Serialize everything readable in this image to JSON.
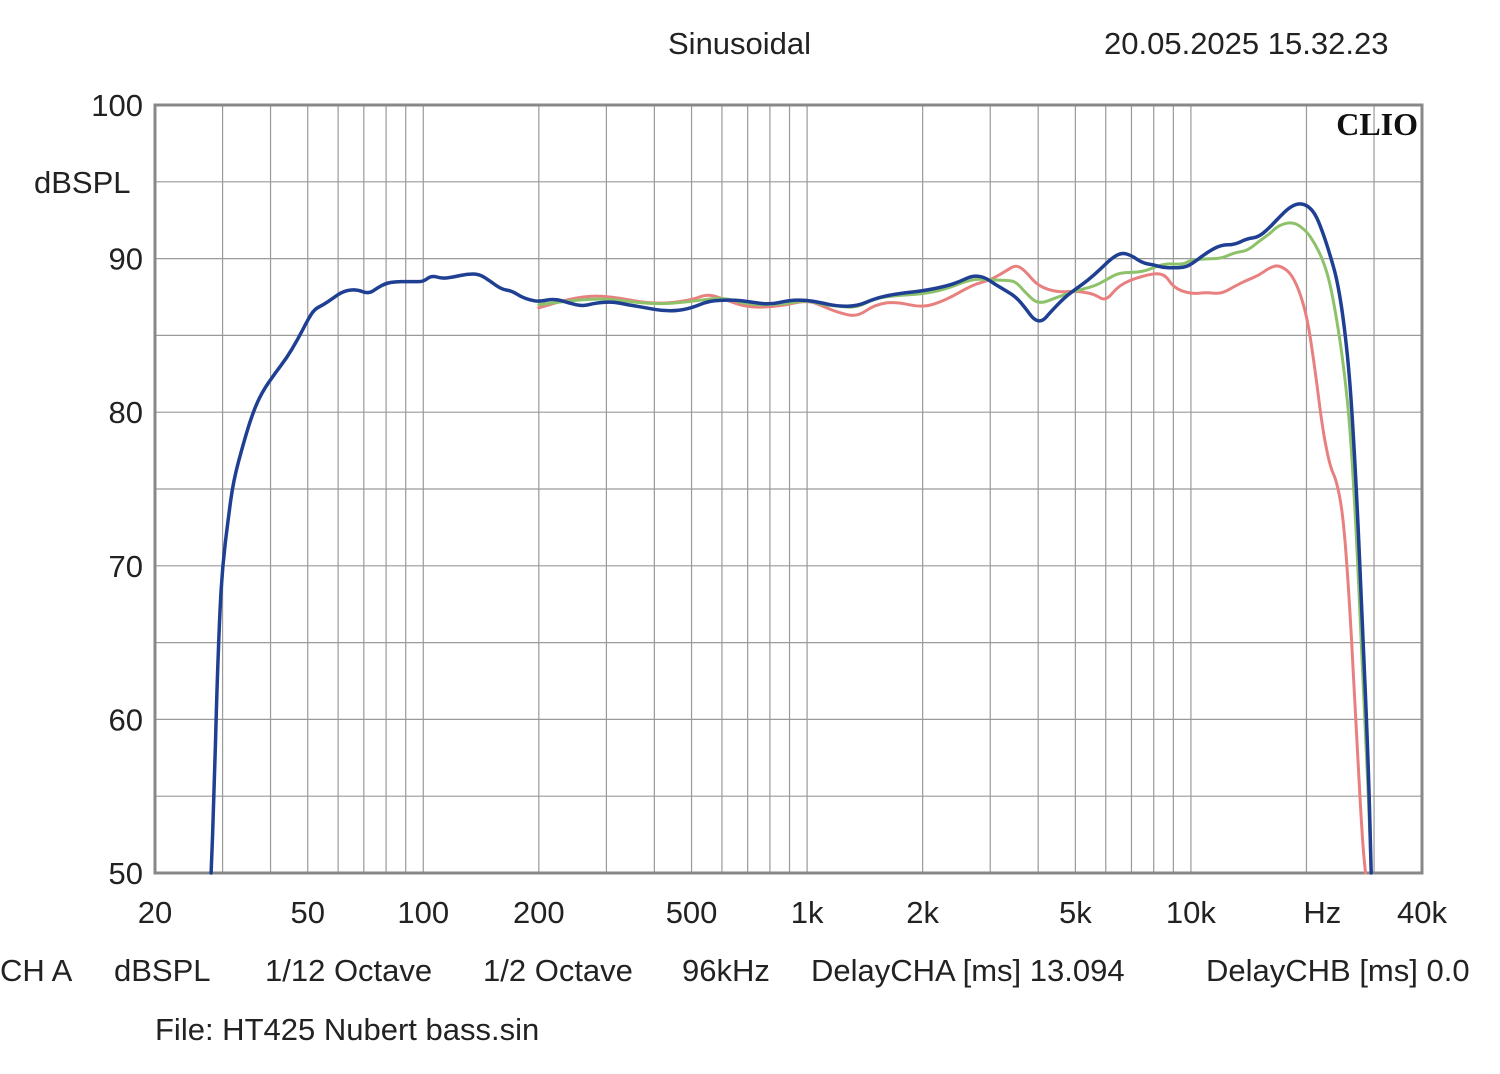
{
  "header": {
    "title": "Sinusoidal",
    "timestamp": "20.05.2025 15.32.23",
    "brand": "CLIO"
  },
  "footer": {
    "channel": "CH A",
    "unit": "dBSPL",
    "smoothing": "1/12 Octave",
    "octave": "1/2 Octave",
    "sample_rate": "96kHz",
    "delay_cha": "DelayCHA [ms] 13.094",
    "delay_chb": "DelayCHB [ms] 0.0",
    "file": "File: HT425 Nubert bass.sin"
  },
  "colors": {
    "grid": "#9a9a9a",
    "frame": "#888888",
    "blue": "#1f3f93",
    "green": "#8ec26a",
    "red": "#e88080"
  },
  "chart_data": {
    "type": "line",
    "title": "Sinusoidal",
    "xlabel": "Hz",
    "ylabel": "dBSPL",
    "xscale": "log",
    "xlim": [
      20,
      40000
    ],
    "ylim": [
      50,
      100
    ],
    "grid": true,
    "x_tick_labels": [
      {
        "value": 20,
        "label": "20"
      },
      {
        "value": 50,
        "label": "50"
      },
      {
        "value": 100,
        "label": "100"
      },
      {
        "value": 200,
        "label": "200"
      },
      {
        "value": 500,
        "label": "500"
      },
      {
        "value": 1000,
        "label": "1k"
      },
      {
        "value": 2000,
        "label": "2k"
      },
      {
        "value": 5000,
        "label": "5k"
      },
      {
        "value": 10000,
        "label": "10k"
      },
      {
        "value": 22000,
        "label": "Hz"
      },
      {
        "value": 40000,
        "label": "40k"
      }
    ],
    "y_tick_labels": [
      {
        "value": 100,
        "label": "100"
      },
      {
        "value": 90,
        "label": "90"
      },
      {
        "value": 80,
        "label": "80"
      },
      {
        "value": 70,
        "label": "70"
      },
      {
        "value": 60,
        "label": "60"
      },
      {
        "value": 50,
        "label": "50"
      }
    ],
    "series": [
      {
        "name": "red",
        "color": "#e88080",
        "points": [
          [
            200,
            86.8
          ],
          [
            250,
            87.5
          ],
          [
            300,
            87.6
          ],
          [
            400,
            87.0
          ],
          [
            500,
            87.3
          ],
          [
            550,
            87.7
          ],
          [
            600,
            87.4
          ],
          [
            700,
            86.8
          ],
          [
            850,
            86.9
          ],
          [
            1000,
            87.3
          ],
          [
            1100,
            86.9
          ],
          [
            1200,
            86.5
          ],
          [
            1350,
            86.2
          ],
          [
            1500,
            87.0
          ],
          [
            1700,
            87.2
          ],
          [
            2000,
            86.8
          ],
          [
            2300,
            87.3
          ],
          [
            2700,
            88.3
          ],
          [
            3000,
            88.6
          ],
          [
            3300,
            89.2
          ],
          [
            3500,
            89.6
          ],
          [
            3700,
            89.2
          ],
          [
            4000,
            88.2
          ],
          [
            4500,
            87.8
          ],
          [
            5000,
            87.9
          ],
          [
            5600,
            87.7
          ],
          [
            6000,
            87.2
          ],
          [
            6500,
            88.3
          ],
          [
            7500,
            88.9
          ],
          [
            8500,
            89.1
          ],
          [
            9000,
            88.1
          ],
          [
            10000,
            87.7
          ],
          [
            11000,
            87.8
          ],
          [
            12000,
            87.7
          ],
          [
            13000,
            88.2
          ],
          [
            14000,
            88.6
          ],
          [
            15000,
            88.9
          ],
          [
            16000,
            89.4
          ],
          [
            17000,
            89.6
          ],
          [
            18500,
            88.9
          ],
          [
            20000,
            86.5
          ],
          [
            21000,
            83
          ],
          [
            22000,
            79
          ],
          [
            23000,
            76.5
          ],
          [
            24000,
            75.5
          ],
          [
            25000,
            73
          ],
          [
            26000,
            67
          ],
          [
            27000,
            59
          ],
          [
            28000,
            52
          ],
          [
            28500,
            50
          ]
        ]
      },
      {
        "name": "green",
        "color": "#8ec26a",
        "points": [
          [
            200,
            87.0
          ],
          [
            250,
            87.3
          ],
          [
            300,
            87.4
          ],
          [
            400,
            87.0
          ],
          [
            500,
            87.2
          ],
          [
            600,
            87.5
          ],
          [
            700,
            87.0
          ],
          [
            850,
            87.0
          ],
          [
            1000,
            87.3
          ],
          [
            1100,
            87.0
          ],
          [
            1200,
            86.9
          ],
          [
            1350,
            86.8
          ],
          [
            1500,
            87.4
          ],
          [
            1700,
            87.6
          ],
          [
            2000,
            87.7
          ],
          [
            2300,
            88.0
          ],
          [
            2700,
            88.7
          ],
          [
            3000,
            88.6
          ],
          [
            3300,
            88.6
          ],
          [
            3500,
            88.5
          ],
          [
            3700,
            87.8
          ],
          [
            4000,
            87.0
          ],
          [
            4500,
            87.5
          ],
          [
            5000,
            87.9
          ],
          [
            5600,
            88.2
          ],
          [
            6000,
            88.6
          ],
          [
            6500,
            89.1
          ],
          [
            7500,
            89.1
          ],
          [
            8500,
            89.7
          ],
          [
            9500,
            89.6
          ],
          [
            10000,
            89.9
          ],
          [
            11000,
            90.0
          ],
          [
            12000,
            90.0
          ],
          [
            13000,
            90.4
          ],
          [
            14000,
            90.5
          ],
          [
            15000,
            91.1
          ],
          [
            16000,
            91.6
          ],
          [
            17000,
            92.2
          ],
          [
            18500,
            92.4
          ],
          [
            20000,
            91.8
          ],
          [
            21000,
            91.0
          ],
          [
            22000,
            90.0
          ],
          [
            23000,
            88.5
          ],
          [
            24000,
            86
          ],
          [
            25000,
            83
          ],
          [
            26000,
            79
          ],
          [
            27000,
            72
          ],
          [
            28000,
            63
          ],
          [
            29000,
            55
          ],
          [
            29500,
            50
          ]
        ]
      },
      {
        "name": "blue",
        "color": "#1f3f93",
        "points": [
          [
            28,
            50
          ],
          [
            28.5,
            55
          ],
          [
            29,
            62
          ],
          [
            29.5,
            67
          ],
          [
            30,
            70
          ],
          [
            31,
            73
          ],
          [
            32,
            75.5
          ],
          [
            34,
            78
          ],
          [
            36,
            80
          ],
          [
            38,
            81.3
          ],
          [
            41,
            82.5
          ],
          [
            44,
            83.5
          ],
          [
            47,
            84.7
          ],
          [
            50,
            86
          ],
          [
            52,
            86.7
          ],
          [
            55,
            87
          ],
          [
            58,
            87.4
          ],
          [
            62,
            87.9
          ],
          [
            67,
            88
          ],
          [
            72,
            87.7
          ],
          [
            76,
            88.1
          ],
          [
            80,
            88.4
          ],
          [
            85,
            88.5
          ],
          [
            90,
            88.5
          ],
          [
            95,
            88.5
          ],
          [
            100,
            88.5
          ],
          [
            105,
            88.9
          ],
          [
            112,
            88.7
          ],
          [
            120,
            88.8
          ],
          [
            130,
            89.0
          ],
          [
            140,
            89.0
          ],
          [
            150,
            88.5
          ],
          [
            160,
            88.0
          ],
          [
            170,
            87.9
          ],
          [
            180,
            87.5
          ],
          [
            190,
            87.3
          ],
          [
            200,
            87.2
          ],
          [
            220,
            87.4
          ],
          [
            240,
            87.1
          ],
          [
            260,
            86.9
          ],
          [
            280,
            87.1
          ],
          [
            310,
            87.2
          ],
          [
            340,
            87.0
          ],
          [
            380,
            86.8
          ],
          [
            420,
            86.6
          ],
          [
            460,
            86.6
          ],
          [
            500,
            86.8
          ],
          [
            550,
            87.2
          ],
          [
            600,
            87.3
          ],
          [
            650,
            87.3
          ],
          [
            700,
            87.2
          ],
          [
            800,
            87.0
          ],
          [
            900,
            87.3
          ],
          [
            1000,
            87.3
          ],
          [
            1100,
            87.1
          ],
          [
            1200,
            86.9
          ],
          [
            1350,
            86.9
          ],
          [
            1500,
            87.4
          ],
          [
            1700,
            87.7
          ],
          [
            2000,
            87.9
          ],
          [
            2300,
            88.2
          ],
          [
            2500,
            88.5
          ],
          [
            2700,
            88.9
          ],
          [
            2900,
            88.8
          ],
          [
            3100,
            88.3
          ],
          [
            3300,
            87.9
          ],
          [
            3500,
            87.5
          ],
          [
            3700,
            86.8
          ],
          [
            3900,
            86.0
          ],
          [
            4100,
            85.9
          ],
          [
            4300,
            86.5
          ],
          [
            4700,
            87.5
          ],
          [
            5000,
            88.0
          ],
          [
            5400,
            88.6
          ],
          [
            5800,
            89.3
          ],
          [
            6200,
            90.0
          ],
          [
            6600,
            90.4
          ],
          [
            7000,
            90.2
          ],
          [
            7500,
            89.7
          ],
          [
            8000,
            89.6
          ],
          [
            8500,
            89.4
          ],
          [
            9000,
            89.4
          ],
          [
            9500,
            89.4
          ],
          [
            10000,
            89.6
          ],
          [
            11000,
            90.4
          ],
          [
            12000,
            90.9
          ],
          [
            13000,
            90.9
          ],
          [
            14000,
            91.3
          ],
          [
            15000,
            91.4
          ],
          [
            16000,
            92.0
          ],
          [
            17000,
            92.7
          ],
          [
            18000,
            93.3
          ],
          [
            19000,
            93.6
          ],
          [
            20000,
            93.5
          ],
          [
            21000,
            93.0
          ],
          [
            22000,
            91.8
          ],
          [
            23000,
            90.3
          ],
          [
            24000,
            88.7
          ],
          [
            25000,
            86
          ],
          [
            26000,
            82
          ],
          [
            27000,
            75
          ],
          [
            28000,
            66
          ],
          [
            29000,
            57
          ],
          [
            29500,
            50
          ]
        ]
      }
    ]
  }
}
